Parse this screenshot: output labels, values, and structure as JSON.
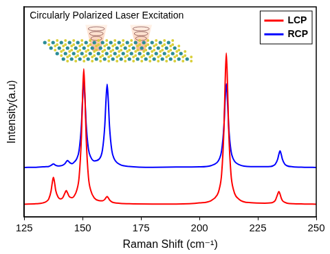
{
  "chart_data": {
    "type": "line",
    "annotation": "Circularly Polarized Laser Excitation",
    "x_label": "Raman Shift (cm⁻¹)",
    "y_label": "Intensity(a.u)",
    "x": [
      125,
      130,
      133,
      134.5,
      135.5,
      136.5,
      137,
      137.5,
      138,
      138.5,
      139.5,
      140.5,
      141.5,
      142.5,
      143,
      143.5,
      144,
      144.5,
      145.5,
      146.5,
      147.5,
      148.5,
      149.5,
      150,
      150.5,
      151,
      151.5,
      152.5,
      153.5,
      155,
      157,
      158.5,
      159.5,
      160,
      160.5,
      161,
      161.5,
      162.5,
      163.5,
      166,
      170,
      180,
      190,
      200,
      205,
      207.5,
      208.5,
      209.5,
      210.5,
      211,
      211.5,
      212,
      212.5,
      213.5,
      214.5,
      217,
      222,
      228,
      230.5,
      231.5,
      232.5,
      233.5,
      234,
      234.5,
      235,
      235.5,
      236.5,
      237.5,
      240,
      245,
      250
    ],
    "series": [
      {
        "name": "LCP",
        "color": "#ff0000",
        "marker": "none",
        "line_style": "solid",
        "values": [
          6,
          6.2,
          6.6,
          7.3,
          8.5,
          12.3,
          16.1,
          18.8,
          16.3,
          12.5,
          9.4,
          8.5,
          9.1,
          11.5,
          12.5,
          11.5,
          10.2,
          9.4,
          9.1,
          10.1,
          12.7,
          18.9,
          38.3,
          57.6,
          70.5,
          57.6,
          38.3,
          18.9,
          12.5,
          9.0,
          7.7,
          7.6,
          8.3,
          9.1,
          9.7,
          9.0,
          8.1,
          7.1,
          6.7,
          6.4,
          6.2,
          6.1,
          6.1,
          6.6,
          7.7,
          10.2,
          13.2,
          20.4,
          42,
          63.6,
          78,
          63.6,
          42,
          20.4,
          13.2,
          8.3,
          6.7,
          6.5,
          6.6,
          6.9,
          7.9,
          10.8,
          12,
          10.8,
          9,
          7.8,
          6.9,
          6.5,
          6.2,
          6.1,
          6
        ]
      },
      {
        "name": "RCP",
        "color": "#0000ff",
        "marker": "none",
        "line_style": "solid",
        "values": [
          23.5,
          23.6,
          23.8,
          23.9,
          24.0,
          24.5,
          24.9,
          25.2,
          24.9,
          24.5,
          24.2,
          24.3,
          24.6,
          25.4,
          26.2,
          26.8,
          26.4,
          25.8,
          25.3,
          26.2,
          27.7,
          31.7,
          43.9,
          56.1,
          64.7,
          56.5,
          44.5,
          32.3,
          28.4,
          26.6,
          27.4,
          31.9,
          43.6,
          55.3,
          63.1,
          55.2,
          43.4,
          31.6,
          27.7,
          24.9,
          24.0,
          23.6,
          23.7,
          23.8,
          24.4,
          25.8,
          27.5,
          31.5,
          43.5,
          55.4,
          63.4,
          55.4,
          43.5,
          31.5,
          27.5,
          24.8,
          23.9,
          23.9,
          24.0,
          24.3,
          25.1,
          27.5,
          29.8,
          31.4,
          29.8,
          27.5,
          25.1,
          24.3,
          23.8,
          23.6,
          23.5
        ]
      }
    ],
    "xlim": [
      125,
      250
    ],
    "xticks": [
      125,
      150,
      175,
      200,
      225,
      250
    ],
    "ylim": [
      0,
      100
    ],
    "grid": false,
    "legend": "upper right",
    "tick_labels": "x"
  }
}
